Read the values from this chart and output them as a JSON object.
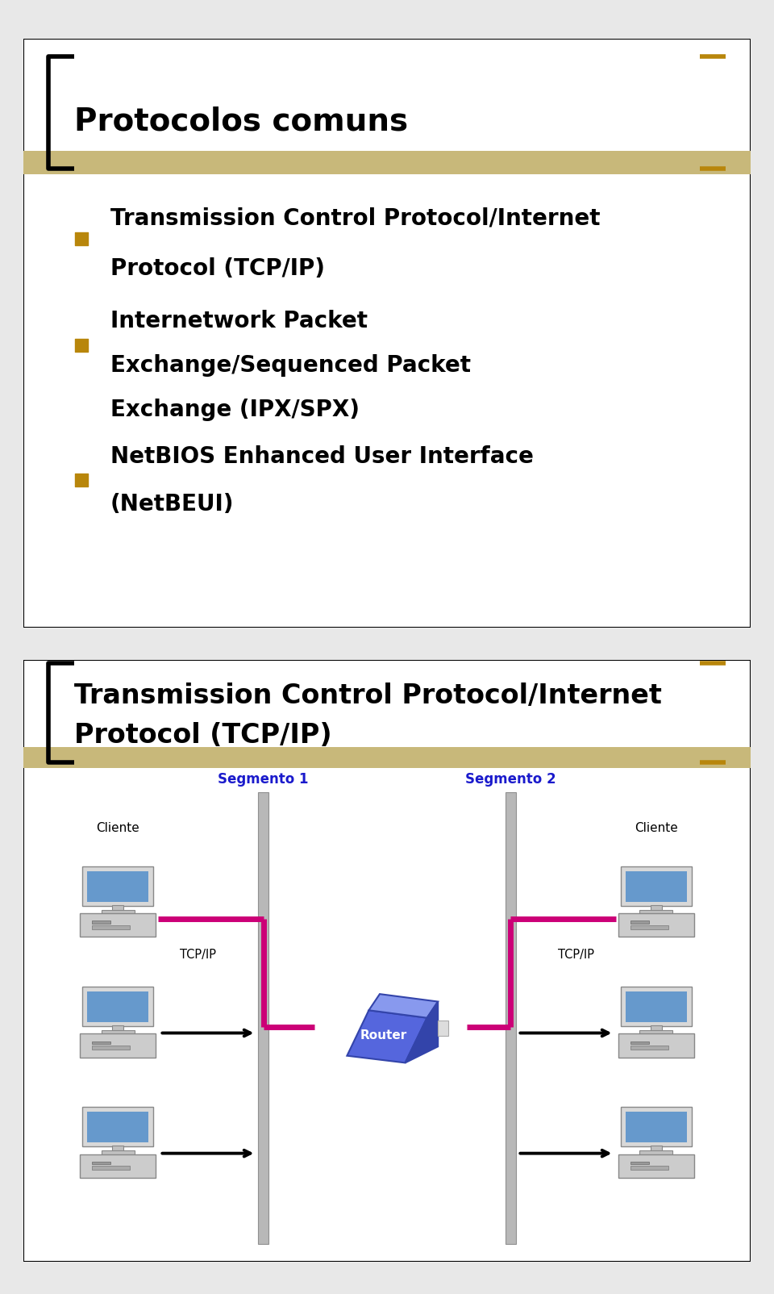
{
  "bg_color": "#e8e8e8",
  "panel_bg": "#ffffff",
  "panel1": {
    "title": "Protocolos comuns",
    "title_color": "#000000",
    "title_fontsize": 28,
    "bracket_color_left": "#000000",
    "bracket_color_right": "#b8860b",
    "header_bar_color": "#c8b87a",
    "bullet_color": "#b8860b",
    "text_color": "#000000",
    "text_fontsize": 20,
    "box_color": "#000000"
  },
  "panel2": {
    "title_line1": "Transmission Control Protocol/Internet",
    "title_line2": "Protocol (TCP/IP)",
    "title_color": "#000000",
    "title_fontsize": 24,
    "bracket_color_left": "#000000",
    "bracket_color_right": "#b8860b",
    "header_bar_color": "#c8b87a",
    "box_color": "#000000",
    "label_cliente_color": "#000000",
    "label_segmento_color": "#1a1acc",
    "label_tcpip_color": "#000000",
    "label_router_color": "#ffffff",
    "magenta_line_color": "#cc0077",
    "black_line_color": "#000000",
    "segment_bar_color": "#b0b0b0",
    "router_front": "#5555dd",
    "router_top": "#7777ee",
    "router_right": "#4444bb"
  }
}
